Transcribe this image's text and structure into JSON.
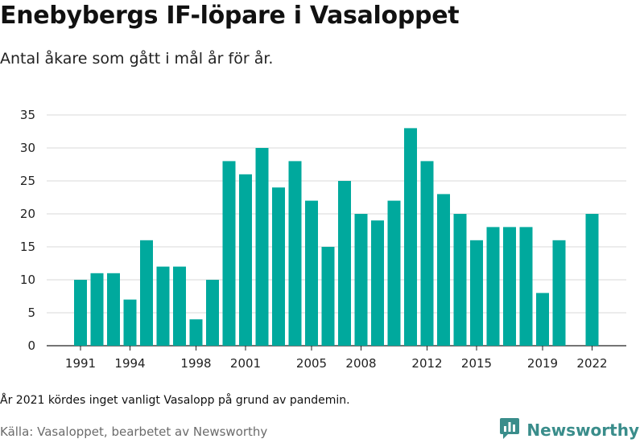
{
  "header": {
    "title": "Enebybergs IF-löpare i Vasaloppet",
    "subtitle": "Antal åkare som gått i mål år för år."
  },
  "footer": {
    "note": "År 2021 kördes inget vanligt Vasalopp på grund av pandemin.",
    "source": "Källa: Vasaloppet, bearbetet av Newsworthy",
    "brand": "Newsworthy",
    "brand_icon": "newsworthy-logo-icon"
  },
  "colors": {
    "bar": "#00a99d",
    "grid": "#d9d9d9",
    "brand": "#3a8d8b"
  },
  "chart_data": {
    "type": "bar",
    "title": "Enebybergs IF-löpare i Vasaloppet",
    "subtitle": "Antal åkare som gått i mål år för år.",
    "x": [
      1991,
      1992,
      1993,
      1994,
      1995,
      1996,
      1997,
      1998,
      1999,
      2000,
      2001,
      2002,
      2003,
      2004,
      2005,
      2006,
      2007,
      2008,
      2009,
      2010,
      2011,
      2012,
      2013,
      2014,
      2015,
      2016,
      2017,
      2018,
      2019,
      2020,
      2021,
      2022
    ],
    "values": [
      10,
      11,
      11,
      7,
      16,
      12,
      12,
      4,
      10,
      28,
      26,
      30,
      24,
      28,
      22,
      15,
      25,
      20,
      19,
      22,
      33,
      28,
      23,
      20,
      16,
      18,
      18,
      18,
      8,
      16,
      null,
      20
    ],
    "x_tick_labels": [
      "1991",
      "1994",
      "1998",
      "2001",
      "2005",
      "2008",
      "2012",
      "2015",
      "2019",
      "2022"
    ],
    "y_ticks": [
      0,
      5,
      10,
      15,
      20,
      25,
      30,
      35
    ],
    "ylim": [
      0,
      35
    ],
    "grid": true,
    "legend": "none"
  }
}
